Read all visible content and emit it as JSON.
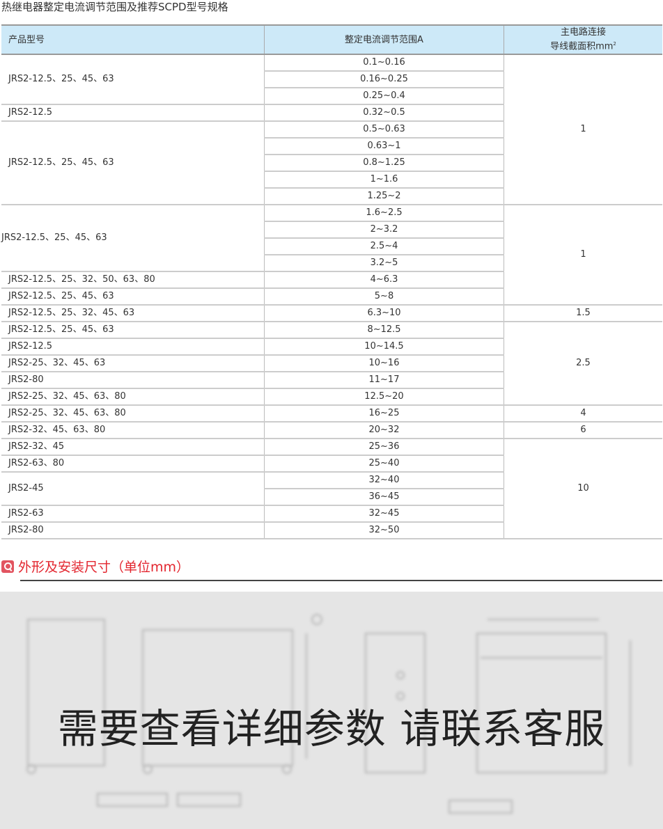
{
  "title": "热继电器整定电流调节范围及推荐SCPD型号规格",
  "table": {
    "headers": {
      "model": "产品型号",
      "range": "整定电流调节范围A",
      "wire_line1": "主电路连接",
      "wire_line2": "导线截面积mm",
      "wire_sup": "2"
    },
    "ranges": [
      "0.1~0.16",
      "0.16~0.25",
      "0.25~0.4",
      "0.32~0.5",
      "0.5~0.63",
      "0.63~1",
      "0.8~1.25",
      "1~1.6",
      "1.25~2",
      "1.6~2.5",
      "2~3.2",
      "2.5~4",
      "3.2~5",
      "4~6.3",
      "5~8",
      "6.3~10",
      "8~12.5",
      "10~14.5",
      "10~16",
      "11~17",
      "12.5~20",
      "16~25",
      "20~32",
      "25~36",
      "25~40",
      "32~40",
      "36~45",
      "32~45",
      "32~50"
    ],
    "models": [
      {
        "text": "JRS2-12.5、25、45、63",
        "span": 3
      },
      {
        "text": "JRS2-12.5",
        "span": 1
      },
      {
        "text": "JRS2-12.5、25、45、63",
        "span": 5
      },
      {
        "text": "JRS2-12.5、25、45、63",
        "span": 4,
        "tight": true
      },
      {
        "text": "JRS2-12.5、25、32、50、63、80",
        "span": 1
      },
      {
        "text": "JRS2-12.5、25、45、63",
        "span": 1
      },
      {
        "text": "JRS2-12.5、25、32、45、63",
        "span": 1
      },
      {
        "text": "JRS2-12.5、25、45、63",
        "span": 1
      },
      {
        "text": "JRS2-12.5",
        "span": 1
      },
      {
        "text": "JRS2-25、32、45、63",
        "span": 1
      },
      {
        "text": "JRS2-80",
        "span": 1
      },
      {
        "text": "JRS2-25、32、45、63、80",
        "span": 1
      },
      {
        "text": "JRS2-25、32、45、63、80",
        "span": 1
      },
      {
        "text": "JRS2-32、45、63、80",
        "span": 1
      },
      {
        "text": "JRS2-32、45",
        "span": 1
      },
      {
        "text": "JRS2-63、80",
        "span": 1
      },
      {
        "text": "JRS2-45",
        "span": 2
      },
      {
        "text": "JRS2-63",
        "span": 1
      },
      {
        "text": "JRS2-80",
        "span": 1
      }
    ],
    "wires": [
      {
        "text": "1",
        "span": 9
      },
      {
        "text": "1",
        "span": 6
      },
      {
        "text": "1.5",
        "span": 1
      },
      {
        "text": "2.5",
        "span": 5
      },
      {
        "text": "4",
        "span": 1
      },
      {
        "text": "6",
        "span": 1
      },
      {
        "text": "10",
        "span": 6
      }
    ]
  },
  "section": {
    "icon": "search-icon",
    "title": "外形及安装尺寸（单位mm）",
    "accent": "#e3262f"
  },
  "drawing": {
    "overlay_text": "需要查看详细参数 请联系客服"
  }
}
